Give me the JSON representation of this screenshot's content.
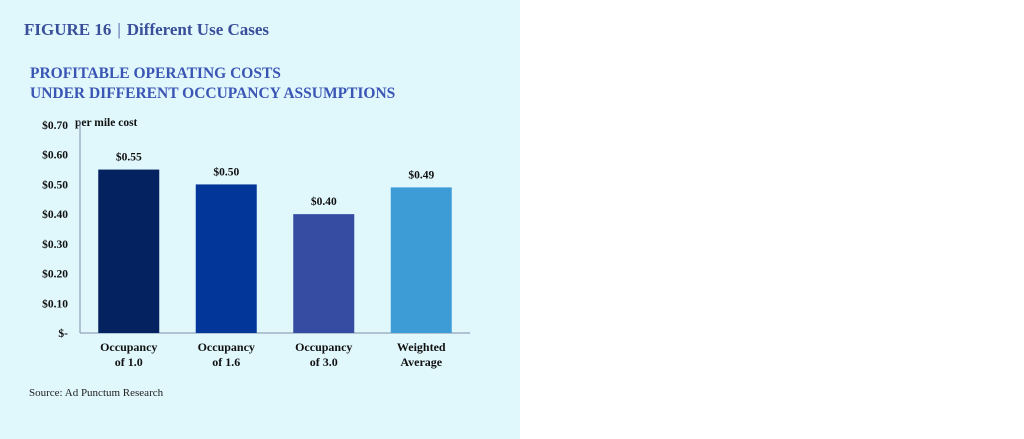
{
  "figure": {
    "label": "FIGURE 16",
    "separator": "|",
    "name": "Different Use Cases"
  },
  "chart_title_lines": [
    "PROFITABLE OPERATING COSTS",
    "UNDER DIFFERENT OCCUPANCY ASSUMPTIONS"
  ],
  "unit_label": "per mile cost",
  "source": "Source: Ad Punctum Research",
  "chart_data": {
    "type": "bar",
    "title": "PROFITABLE OPERATING COSTS UNDER DIFFERENT OCCUPANCY ASSUMPTIONS",
    "ylabel": "per mile cost",
    "xlabel": "",
    "categories": [
      [
        "Occupancy",
        "of 1.0"
      ],
      [
        "Occupancy",
        "of 1.6"
      ],
      [
        "Occupancy",
        "of 3.0"
      ],
      [
        "Weighted",
        "Average"
      ]
    ],
    "values": [
      0.55,
      0.5,
      0.4,
      0.49
    ],
    "value_labels": [
      "$0.55",
      "$0.50",
      "$0.40",
      "$0.49"
    ],
    "colors": [
      "#03225f",
      "#033699",
      "#364ca3",
      "#3d9bd6"
    ],
    "ylim": [
      0,
      0.7
    ],
    "yticks": [
      0,
      0.1,
      0.2,
      0.3,
      0.4,
      0.5,
      0.6,
      0.7
    ],
    "ytick_labels": [
      "$-",
      "$0.10",
      "$0.20",
      "$0.30",
      "$0.40",
      "$0.50",
      "$0.60",
      "$0.70"
    ],
    "grid": false,
    "legend": "none"
  }
}
